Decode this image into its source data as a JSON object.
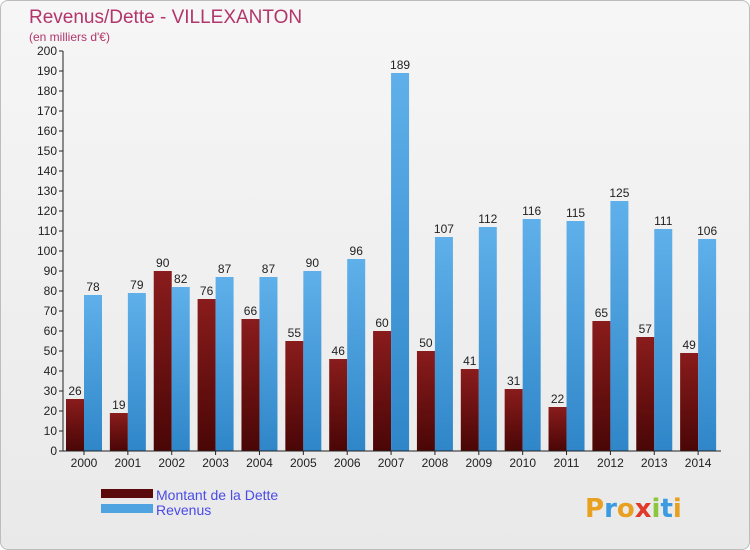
{
  "chart_data": {
    "type": "bar",
    "title": "Revenus/Dette - VILLEXANTON",
    "subtitle": "(en milliers d'€)",
    "categories": [
      "2000",
      "2001",
      "2002",
      "2003",
      "2004",
      "2005",
      "2006",
      "2007",
      "2008",
      "2009",
      "2010",
      "2011",
      "2012",
      "2013",
      "2014"
    ],
    "series": [
      {
        "name": "Montant de la Dette",
        "color": "#6e1010",
        "values": [
          26,
          19,
          90,
          76,
          66,
          55,
          46,
          60,
          50,
          41,
          31,
          22,
          65,
          57,
          49
        ]
      },
      {
        "name": "Revenus",
        "color": "#4ea3e0",
        "values": [
          78,
          79,
          82,
          87,
          87,
          90,
          96,
          189,
          107,
          112,
          116,
          115,
          125,
          111,
          106
        ]
      }
    ],
    "ylim": [
      0,
      200
    ],
    "ytick_step": 10,
    "grid": false,
    "legend_position": "bottom-left"
  },
  "logo": {
    "letters": [
      "P",
      "r",
      "o",
      "x",
      "i",
      "t",
      "i"
    ],
    "colors": [
      "#e8a020",
      "#3a9be0",
      "#e8a020",
      "#e03a2a",
      "#8cc63f",
      "#3a9be0",
      "#e8a020"
    ]
  }
}
